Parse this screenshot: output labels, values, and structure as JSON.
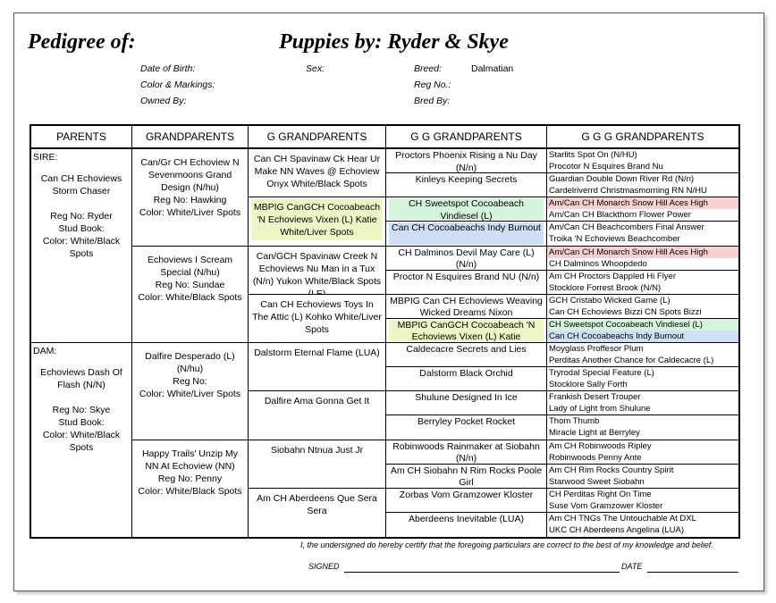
{
  "header": {
    "pedigree_label": "Pedigree of:",
    "title": "Puppies by: Ryder & Skye",
    "fields": {
      "dob_label": "Date of Birth:",
      "sex_label": "Sex:",
      "breed_label": "Breed:",
      "breed_value": "Dalmatian",
      "color_label": "Color & Markings:",
      "reg_label": "Reg No.:",
      "owned_label": "Owned By:",
      "bred_label": "Bred By:"
    }
  },
  "columns": [
    "PARENTS",
    "GRANDPARENTS",
    "G GRANDPARENTS",
    "G G GRANDPARENTS",
    "G G G GRANDPARENTS"
  ],
  "highlight_colors": {
    "green": "#d4f5dc",
    "blue": "#cfdff7",
    "yellow": "#eef6c6",
    "red": "#f8d0d0"
  },
  "parents": [
    {
      "tag": "SIRE:",
      "name": "Can CH Echoviews Storm Chaser",
      "reg": "Reg No: Ryder",
      "stud": "Stud Book:",
      "color": "Color: White/Black Spots"
    },
    {
      "tag": "DAM:",
      "name": "Echoviews Dash Of Flash (N/N)",
      "reg": "Reg No: Skye",
      "stud": "Stud Book:",
      "color": "Color: White/Black Spots"
    }
  ],
  "grandparents": [
    {
      "name": "Can/Gr CH Echoview N Sevenmoons Grand Design (N/hu)",
      "reg": "Reg No: Hawking",
      "color": "Color: White/Liver Spots"
    },
    {
      "name": "Echoviews I Scream Special (N/hu)",
      "reg": "Reg No: Sundae",
      "color": "Color: White/Black Spots"
    },
    {
      "name": "Dalfire Desperado (L) (N/hu)",
      "reg": "Reg No:",
      "color": "Color: White/Liver Spots"
    },
    {
      "name": "Happy Trails' Unzip My NN At Echoview (NN)",
      "reg": "Reg No: Penny",
      "color": "Color: White/Black Spots"
    }
  ],
  "g_grandparents": [
    {
      "name": "Can CH Spavinaw Ck Hear Ur Make NN Waves @ Echoview Onyx White/Black Spots",
      "highlight": ""
    },
    {
      "name": "MBPIG CanGCH Cocoabeach 'N Echoviews Vixen (L) Katie White/Liver Spots",
      "highlight": "yellow"
    },
    {
      "name": "Can/GCH Spavinaw Creek N Echoviews Nu Man in a Tux (N/n) Yukon White/Black Spots (LE)",
      "highlight": ""
    },
    {
      "name": "Can CH Echoviews Toys In The Attic (L) Kohko White/Liver Spots",
      "highlight": ""
    },
    {
      "name": "Dalstorm Eternal Flame (LUA)",
      "highlight": ""
    },
    {
      "name": "Dalfire Ama Gonna Get It",
      "highlight": ""
    },
    {
      "name": "Siobahn Ntnua Just Jr",
      "highlight": ""
    },
    {
      "name": "Am CH Aberdeens Que Sera Sera",
      "highlight": ""
    }
  ],
  "gg_grandparents": [
    {
      "name": "Proctors Phoenix Rising a Nu Day (N/n)",
      "highlight": ""
    },
    {
      "name": "Kinleys Keeping Secrets",
      "highlight": ""
    },
    {
      "name": "CH Sweetspot Cocoabeach Vindiesel (L)",
      "highlight": "green"
    },
    {
      "name": "Can CH Cocoabeachs Indy Burnout",
      "highlight": "blue"
    },
    {
      "name": "CH Dalminos Devil May Care (L) (N/n)",
      "highlight": ""
    },
    {
      "name": "Proctor N Esquires Brand NU (N/n)",
      "highlight": ""
    },
    {
      "name": "MBPIG Can CH Echoviews Weaving Wicked Dreams Nixon",
      "highlight": ""
    },
    {
      "name": "MBPIG CanGCH Cocoabeach 'N Echoviews Vixen (L) Katie",
      "highlight": "yellow"
    },
    {
      "name": "Caldecacre Secrets and Lies",
      "highlight": ""
    },
    {
      "name": "Dalstorm Black Orchid",
      "highlight": ""
    },
    {
      "name": "Shulune Designed In Ice",
      "highlight": ""
    },
    {
      "name": "Berryley Pocket Rocket",
      "highlight": ""
    },
    {
      "name": "Robinwoods Rainmaker at Siobahn (N/n)",
      "highlight": ""
    },
    {
      "name": "Am CH Siobahn N Rim Rocks Poole Girl",
      "highlight": ""
    },
    {
      "name": "Zorbas Vom Gramzower Kloster",
      "highlight": ""
    },
    {
      "name": "Aberdeens Inevitable (LUA)",
      "highlight": ""
    }
  ],
  "ggg_grandparents": [
    {
      "name": "Starlits Spot On (N/HU)",
      "highlight": ""
    },
    {
      "name": "Procotor N Esquires Brand Nu",
      "highlight": ""
    },
    {
      "name": "Guardian Double Down River Rd (N/n)",
      "highlight": ""
    },
    {
      "name": "Cardelriverrd Christmasmorning RN N/HU",
      "highlight": ""
    },
    {
      "name": "Am/Can CH Monarch Snow Hill Aces High",
      "highlight": "red"
    },
    {
      "name": "Am/Can CH Blackthorn Flower Power",
      "highlight": ""
    },
    {
      "name": "Am/Can CH Beachcombers Final Answer",
      "highlight": ""
    },
    {
      "name": "Troika 'N Echoviews Beachcomber",
      "highlight": ""
    },
    {
      "name": "Am/Can CH Monarch Snow Hill Aces High",
      "highlight": "red"
    },
    {
      "name": "CH Dalminos Whoopdedo",
      "highlight": ""
    },
    {
      "name": "Am CH Proctors Dappled Hi Flyer",
      "highlight": ""
    },
    {
      "name": "Stocklore Forrest Brook (N/N)",
      "highlight": ""
    },
    {
      "name": "GCH Cristabo Wicked Game (L)",
      "highlight": ""
    },
    {
      "name": "Can CH Echoviews Bizzi CN Spots Bizzi",
      "highlight": ""
    },
    {
      "name": "CH Sweetspot Cocoabeach Vindiesel (L)",
      "highlight": "green"
    },
    {
      "name": "Can CH Cocoabeachs Indy Burnout",
      "highlight": "blue"
    },
    {
      "name": "Moyglass Proffesor Plum",
      "highlight": ""
    },
    {
      "name": "Perditas Another Chance for Caldecacre (L)",
      "highlight": ""
    },
    {
      "name": "Tryrodal Special Feature (L)",
      "highlight": ""
    },
    {
      "name": "Stocklore Sally Forth",
      "highlight": ""
    },
    {
      "name": "Frankish Desert Trouper",
      "highlight": ""
    },
    {
      "name": "Lady of Light from Shulune",
      "highlight": ""
    },
    {
      "name": "Thom Thumb",
      "highlight": ""
    },
    {
      "name": "Miracle Light at Berryley",
      "highlight": ""
    },
    {
      "name": "Am CH Robinwoods Ripley",
      "highlight": ""
    },
    {
      "name": "Robinwoods Penny Ante",
      "highlight": ""
    },
    {
      "name": "Am CH Rim Rocks Country Spirit",
      "highlight": ""
    },
    {
      "name": "Starwood Sweet Siobahn",
      "highlight": ""
    },
    {
      "name": "CH Perditas Right On Time",
      "highlight": ""
    },
    {
      "name": "Suse Vom Gramzower Kloster",
      "highlight": ""
    },
    {
      "name": "Am CH TNGs The Untouchable At DXL",
      "highlight": ""
    },
    {
      "name": "UKC CH Aberdeens Angelina (LUA)",
      "highlight": ""
    }
  ],
  "footer": {
    "certification": "I, the undersigned do hereby certify that the foregoing particulars are correct to the best of my knowledge and belief.",
    "signed_label": "SIGNED",
    "date_label": "DATE"
  }
}
